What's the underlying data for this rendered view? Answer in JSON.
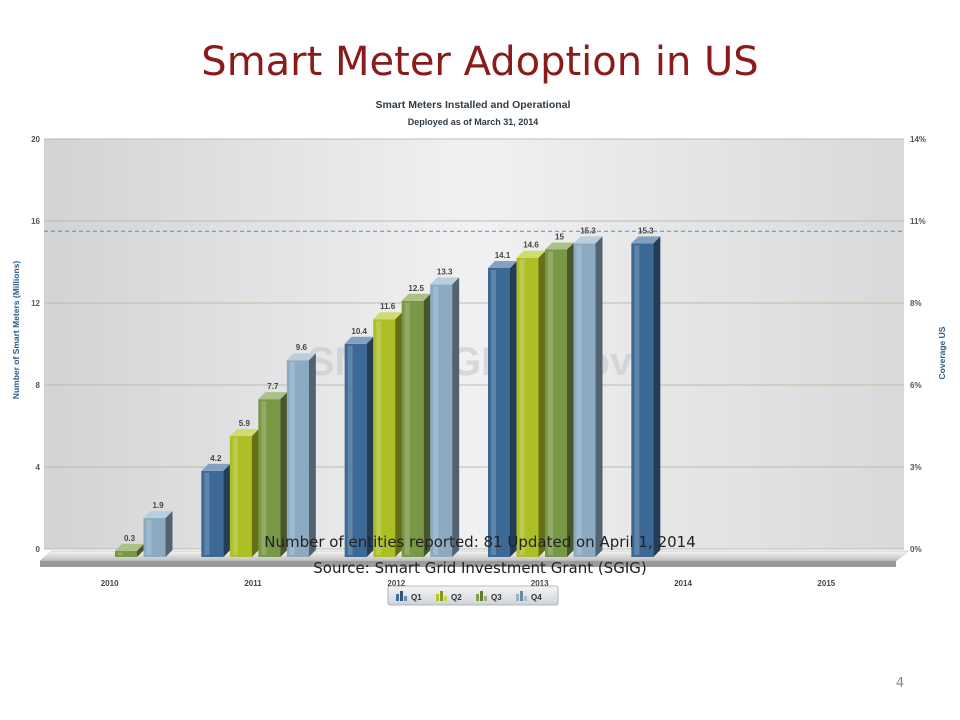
{
  "slide": {
    "title": "Smart Meter Adoption in US",
    "caption_line1": "Number of entities reported: 81 Updated on April 1, 2014",
    "caption_line2": "Source:  Smart Grid Investment Grant (SGIG)",
    "page_number": "4",
    "title_color": "#8b1a1a"
  },
  "chart_data": {
    "type": "bar",
    "title": "Smart Meters Installed and Operational",
    "subtitle": "Deployed as of March 31, 2014",
    "ylabel": "Number of Smart Meters (Millions)",
    "y2label": "Coverage US",
    "ylim": [
      0,
      20
    ],
    "yticks": [
      0,
      4,
      8,
      12,
      16,
      20
    ],
    "y2ticks": [
      "0%",
      "3%",
      "6%",
      "8%",
      "11%",
      "14%"
    ],
    "categories": [
      "2010",
      "2011",
      "2012",
      "2013",
      "2014",
      "2015"
    ],
    "series": [
      {
        "name": "Q1",
        "color": "#3f6f9e",
        "values": [
          null,
          4.2,
          10.4,
          14.1,
          15.3,
          null
        ]
      },
      {
        "name": "Q2",
        "color": "#b7c928",
        "values": [
          null,
          5.9,
          11.6,
          14.6,
          null,
          null
        ]
      },
      {
        "name": "Q3",
        "color": "#7fa04a",
        "values": [
          0.3,
          7.7,
          12.5,
          15,
          null,
          null
        ]
      },
      {
        "name": "Q4",
        "color": "#93b4cc",
        "values": [
          1.9,
          9.6,
          13.3,
          15.3,
          null,
          null
        ]
      }
    ],
    "reference_line": {
      "value": 15.5,
      "style": "dashed",
      "color": "#4a90c8"
    },
    "watermark": "SMARTGRID.gov",
    "legend_position": "bottom-center",
    "grid": true
  }
}
